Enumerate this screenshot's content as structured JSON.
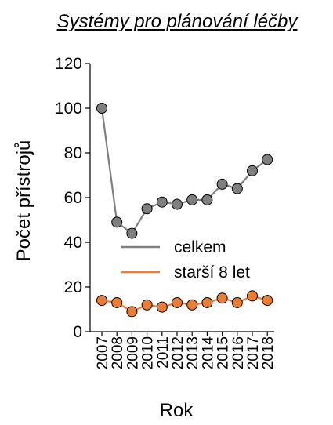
{
  "chart_data": {
    "type": "line",
    "title": "Systémy pro plánování léčby",
    "xlabel": "Rok",
    "ylabel": "Počet přístrojů",
    "x": [
      "2007",
      "2008",
      "2009",
      "2010",
      "2011",
      "2012",
      "2013",
      "2014",
      "2015",
      "2016",
      "2017",
      "2018"
    ],
    "ylim": [
      0,
      120
    ],
    "yticks": [
      "0",
      "20",
      "40",
      "60",
      "80",
      "100",
      "120"
    ],
    "grid": false,
    "legend_position": "center-left",
    "series": [
      {
        "name": "celkem",
        "color": "#808080",
        "marker_color": "#7f7f7f",
        "values": [
          100,
          49,
          44,
          55,
          58,
          57,
          59,
          59,
          66,
          64,
          72,
          77
        ]
      },
      {
        "name": "starší 8 let",
        "color": "#ed7d31",
        "marker_color": "#ed7d31",
        "values": [
          14,
          13,
          9,
          12,
          11,
          13,
          12,
          13,
          15,
          13,
          16,
          14
        ]
      }
    ]
  }
}
